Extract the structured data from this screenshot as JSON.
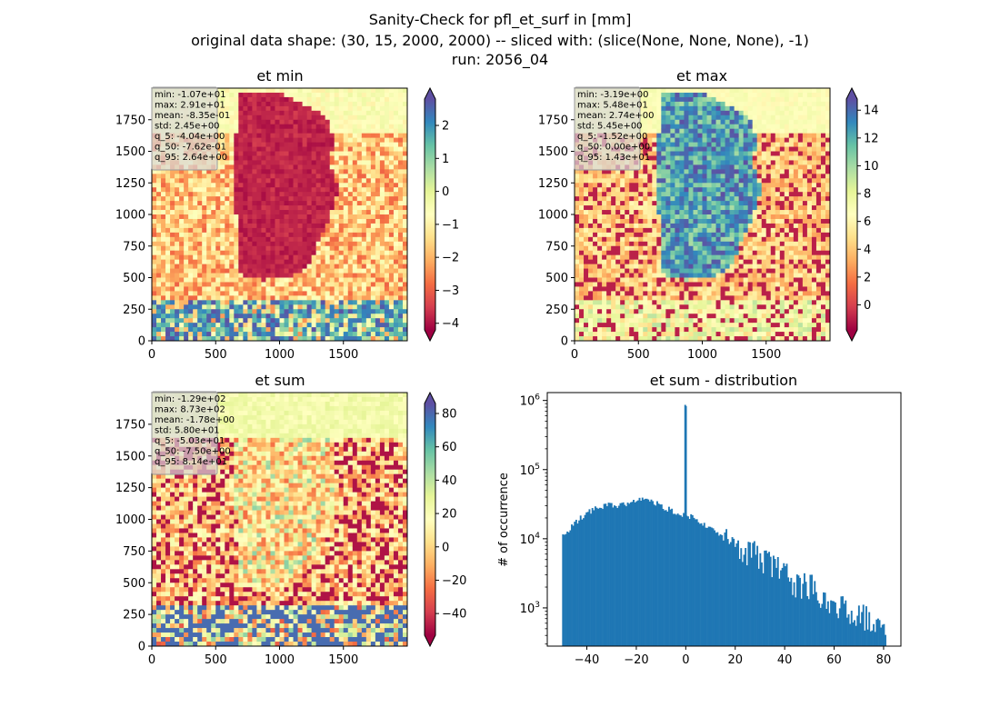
{
  "suptitle": {
    "line1": "Sanity-Check for pfl_et_surf in [mm]",
    "line2": "original data shape: (30, 15, 2000, 2000) -- sliced with: (slice(None, None, None), -1)",
    "line3": "run: 2056_04"
  },
  "chart_data": [
    {
      "type": "heatmap",
      "title": "et min",
      "colormap": "Spectral",
      "colorbar": {
        "range": [
          -4.2,
          2.8
        ],
        "ticks": [
          -4,
          -3,
          -2,
          -1,
          0,
          1,
          2
        ],
        "extend": "both"
      },
      "xlim": [
        0,
        2000
      ],
      "ylim": [
        0,
        2000
      ],
      "xticks": [
        0,
        500,
        1000,
        1500
      ],
      "yticks": [
        0,
        250,
        500,
        750,
        1000,
        1250,
        1500,
        1750
      ],
      "stats": [
        "min: -1.07e+01",
        "max: 2.91e+01",
        "mean: -8.35e-01",
        "std: 2.45e+00",
        "q_5: -4.04e+00",
        "q_50: -7.62e-01",
        "q_95: 2.64e+00"
      ]
    },
    {
      "type": "heatmap",
      "title": "et max",
      "colormap": "Spectral",
      "colorbar": {
        "range": [
          -1.8,
          14.8
        ],
        "ticks": [
          0,
          2,
          4,
          6,
          8,
          10,
          12,
          14
        ],
        "extend": "both"
      },
      "xlim": [
        0,
        2000
      ],
      "ylim": [
        0,
        2000
      ],
      "xticks": [
        0,
        500,
        1000,
        1500
      ],
      "yticks": [
        0,
        250,
        500,
        750,
        1000,
        1250,
        1500,
        1750
      ],
      "stats": [
        "min: -3.19e+00",
        "max: 5.48e+01",
        "mean: 2.74e+00",
        "std: 5.45e+00",
        "q_5: -1.52e+00",
        "q_50: 0.00e+00",
        "q_95: 1.43e+01"
      ]
    },
    {
      "type": "heatmap",
      "title": "et sum",
      "colormap": "Spectral",
      "colorbar": {
        "range": [
          -53,
          86
        ],
        "ticks": [
          -40,
          -20,
          0,
          20,
          40,
          60,
          80
        ],
        "extend": "both"
      },
      "xlim": [
        0,
        2000
      ],
      "ylim": [
        0,
        2000
      ],
      "xticks": [
        0,
        500,
        1000,
        1500
      ],
      "yticks": [
        0,
        250,
        500,
        750,
        1000,
        1250,
        1500,
        1750
      ],
      "stats": [
        "min: -1.29e+02",
        "max: 8.73e+02",
        "mean: -1.78e+00",
        "std: 5.80e+01",
        "q_5: -5.03e+01",
        "q_50: -7.50e+00",
        "q_95: 8.14e+01"
      ]
    },
    {
      "type": "bar",
      "title": "et sum - distribution",
      "ylabel": "# of occurrence",
      "yscale": "log",
      "xlim": [
        -56,
        87
      ],
      "ylim": [
        280,
        1300000
      ],
      "xticks": [
        -40,
        -20,
        0,
        20,
        40,
        60,
        80
      ],
      "yticks": [
        {
          "value": 1000,
          "label": "10^3"
        },
        {
          "value": 10000,
          "label": "10^4"
        },
        {
          "value": 100000,
          "label": "10^5"
        },
        {
          "value": 1000000,
          "label": "10^6"
        }
      ],
      "bins": {
        "start": -50,
        "end": 81,
        "count": 220
      },
      "anchors": [
        [
          -50,
          11000
        ],
        [
          -46,
          15000
        ],
        [
          -42,
          21000
        ],
        [
          -38,
          26000
        ],
        [
          -34,
          29000
        ],
        [
          -30,
          31000
        ],
        [
          -26,
          30000
        ],
        [
          -22,
          33000
        ],
        [
          -18,
          38000
        ],
        [
          -14,
          36000
        ],
        [
          -10,
          30000
        ],
        [
          -6,
          26000
        ],
        [
          -2,
          23000
        ],
        [
          0,
          830000
        ],
        [
          2,
          21000
        ],
        [
          6,
          18000
        ],
        [
          10,
          14000
        ],
        [
          14,
          11000
        ],
        [
          18,
          10000
        ],
        [
          22,
          8500
        ],
        [
          26,
          7000
        ],
        [
          30,
          5600
        ],
        [
          34,
          4800
        ],
        [
          38,
          3700
        ],
        [
          42,
          2800
        ],
        [
          46,
          2200
        ],
        [
          50,
          2400
        ],
        [
          54,
          1700
        ],
        [
          58,
          1400
        ],
        [
          62,
          1100
        ],
        [
          66,
          950
        ],
        [
          70,
          900
        ],
        [
          74,
          700
        ],
        [
          78,
          700
        ],
        [
          81,
          700
        ]
      ]
    }
  ]
}
